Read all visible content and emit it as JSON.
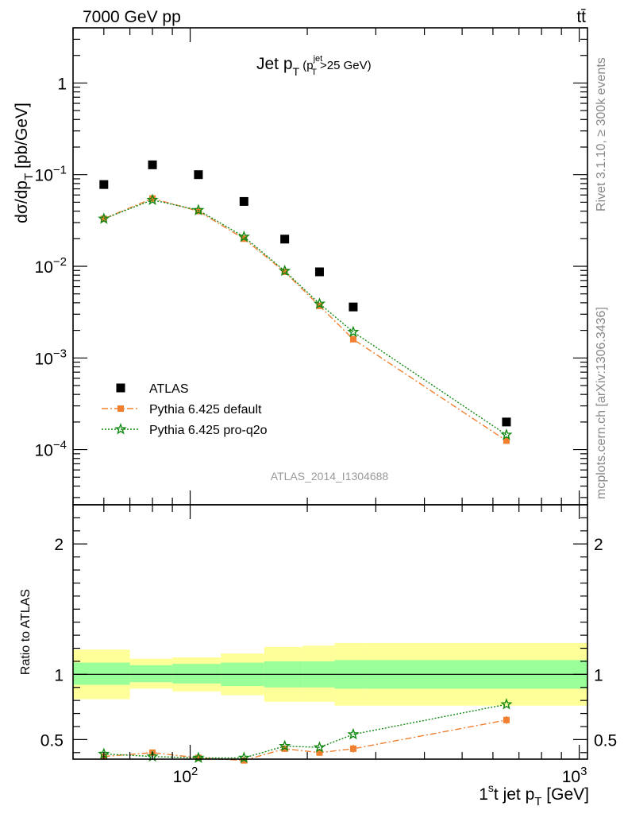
{
  "header": {
    "energy_label": "7000 GeV pp",
    "process_label": "tt̄"
  },
  "side_labels": {
    "rivet": "Rivet 3.1.10, ≥ 300k events",
    "mcplots": "mcplots.cern.ch [arXiv:1306.3436]"
  },
  "analysis_label": "ATLAS_2014_I1304688",
  "chart_data": [
    {
      "type": "scatter",
      "panel": "main",
      "title": "Jet p_T (p_T^jet>25 GeV)",
      "ylabel": "dσ/dp_T [pb/GeV]",
      "yscale": "log",
      "xscale": "log",
      "xlim": [
        50,
        1050
      ],
      "ylim": [
        2.5e-05,
        4
      ],
      "y_ticks": [
        {
          "value": 1,
          "label": "1"
        },
        {
          "value": 0.1,
          "label": "10",
          "exp": "−1"
        },
        {
          "value": 0.01,
          "label": "10",
          "exp": "−2"
        },
        {
          "value": 0.001,
          "label": "10",
          "exp": "−3"
        },
        {
          "value": 0.0001,
          "label": "10",
          "exp": "−4"
        }
      ],
      "legend_position": "bottom-left",
      "series": [
        {
          "name": "ATLAS",
          "color": "#000000",
          "marker": "square",
          "x": [
            60,
            80,
            105,
            137.5,
            175,
            215,
            262.5,
            650
          ],
          "y": [
            0.078,
            0.128,
            0.1,
            0.051,
            0.0198,
            0.0087,
            0.0036,
            0.0002
          ]
        },
        {
          "name": "Pythia 6.425 default",
          "color": "#f08030",
          "marker": "square-small",
          "line": "dash-dot",
          "x": [
            60,
            80,
            105,
            137.5,
            175,
            215,
            262.5,
            650
          ],
          "y": [
            0.033,
            0.055,
            0.04,
            0.02,
            0.0087,
            0.0037,
            0.0016,
            0.000125
          ]
        },
        {
          "name": "Pythia 6.425 pro-q2o",
          "color": "#118811",
          "marker": "star",
          "line": "dotted",
          "x": [
            60,
            80,
            105,
            137.5,
            175,
            215,
            262.5,
            650
          ],
          "y": [
            0.033,
            0.053,
            0.041,
            0.021,
            0.0089,
            0.0039,
            0.00192,
            0.000145
          ]
        }
      ]
    },
    {
      "type": "line",
      "panel": "ratio",
      "ylabel": "Ratio to ATLAS",
      "xlabel": "1^st jet p_T [GeV]",
      "xscale": "log",
      "xlim": [
        50,
        1050
      ],
      "ylim": [
        0.35,
        2.3
      ],
      "y_ticks": [
        {
          "value": 0.5,
          "label": "0.5"
        },
        {
          "value": 1,
          "label": "1"
        },
        {
          "value": 2,
          "label": "2"
        }
      ],
      "x_ticks": [
        {
          "value": 100,
          "label": "10",
          "exp": "2"
        },
        {
          "value": 1000,
          "label": "10",
          "exp": "3"
        }
      ],
      "bins": [
        {
          "lo": 50,
          "hi": 70,
          "inner": [
            0.92,
            1.09
          ],
          "outer": [
            0.81,
            1.19
          ]
        },
        {
          "lo": 70,
          "hi": 90,
          "inner": [
            0.94,
            1.07
          ],
          "outer": [
            0.89,
            1.12
          ]
        },
        {
          "lo": 90,
          "hi": 120,
          "inner": [
            0.93,
            1.08
          ],
          "outer": [
            0.87,
            1.13
          ]
        },
        {
          "lo": 120,
          "hi": 155,
          "inner": [
            0.91,
            1.09
          ],
          "outer": [
            0.84,
            1.16
          ]
        },
        {
          "lo": 155,
          "hi": 195,
          "inner": [
            0.9,
            1.1
          ],
          "outer": [
            0.79,
            1.21
          ]
        },
        {
          "lo": 195,
          "hi": 235,
          "inner": [
            0.9,
            1.1
          ],
          "outer": [
            0.79,
            1.22
          ]
        },
        {
          "lo": 235,
          "hi": 280,
          "inner": [
            0.89,
            1.11
          ],
          "outer": [
            0.76,
            1.24
          ]
        },
        {
          "lo": 280,
          "hi": 1050,
          "inner": [
            0.89,
            1.11
          ],
          "outer": [
            0.76,
            1.24
          ]
        }
      ],
      "series": [
        {
          "name": "Pythia 6.425 default",
          "color": "#f08030",
          "marker": "square-small",
          "line": "dash-dot",
          "x": [
            60,
            80,
            105,
            137.5,
            175,
            215,
            262.5,
            650
          ],
          "y": [
            0.37,
            0.4,
            0.36,
            0.34,
            0.43,
            0.4,
            0.43,
            0.65
          ],
          "err": [
            0.01,
            0.01,
            0.01,
            0.01,
            0.015,
            0.02,
            0.03,
            0.03
          ]
        },
        {
          "name": "Pythia 6.425 pro-q2o",
          "color": "#118811",
          "marker": "star",
          "line": "dotted",
          "x": [
            60,
            80,
            105,
            137.5,
            175,
            215,
            262.5,
            650
          ],
          "y": [
            0.39,
            0.37,
            0.36,
            0.36,
            0.45,
            0.44,
            0.54,
            0.77
          ],
          "err": [
            0,
            0,
            0,
            0,
            0,
            0,
            0,
            0
          ]
        }
      ]
    }
  ]
}
